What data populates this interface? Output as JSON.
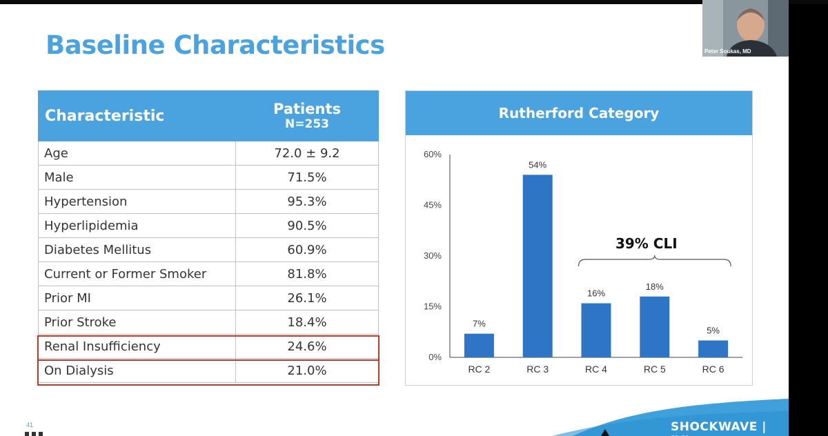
{
  "slide": {
    "title": "Baseline Characteristics",
    "page_number": "41",
    "logo": "SHOCKWAVE | IVL"
  },
  "table": {
    "header_characteristic": "Characteristic",
    "header_patients": "Patients",
    "header_n": "N=253",
    "rows": [
      {
        "label": "Age",
        "value": "72.0 ± 9.2"
      },
      {
        "label": "Male",
        "value": "71.5%"
      },
      {
        "label": "Hypertension",
        "value": "95.3%"
      },
      {
        "label": "Hyperlipidemia",
        "value": "90.5%"
      },
      {
        "label": "Diabetes Mellitus",
        "value": "60.9%"
      },
      {
        "label": "Current or Former Smoker",
        "value": "81.8%"
      },
      {
        "label": "Prior MI",
        "value": "26.1%"
      },
      {
        "label": "Prior Stroke",
        "value": "18.4%"
      },
      {
        "label": "Renal Insufficiency",
        "value": "24.6%"
      },
      {
        "label": "On Dialysis",
        "value": "21.0%"
      }
    ]
  },
  "webcam": {
    "name": "Peter Soukas, MD"
  },
  "colors": {
    "accent": "#4aa3df",
    "bar": "#2e75c6",
    "highlight": "#c0392b"
  },
  "chart_data": {
    "type": "bar",
    "title": "Rutherford Category",
    "categories": [
      "RC 2",
      "RC 3",
      "RC 4",
      "RC 5",
      "RC 6"
    ],
    "values": [
      7,
      54,
      16,
      18,
      5
    ],
    "data_labels": [
      "7%",
      "54%",
      "16%",
      "18%",
      "5%"
    ],
    "yticks": [
      "0%",
      "15%",
      "30%",
      "45%",
      "60%"
    ],
    "ylim": [
      0,
      60
    ],
    "annotation": "39% CLI",
    "annotation_span": [
      "RC 4",
      "RC 6"
    ],
    "grid": false
  }
}
